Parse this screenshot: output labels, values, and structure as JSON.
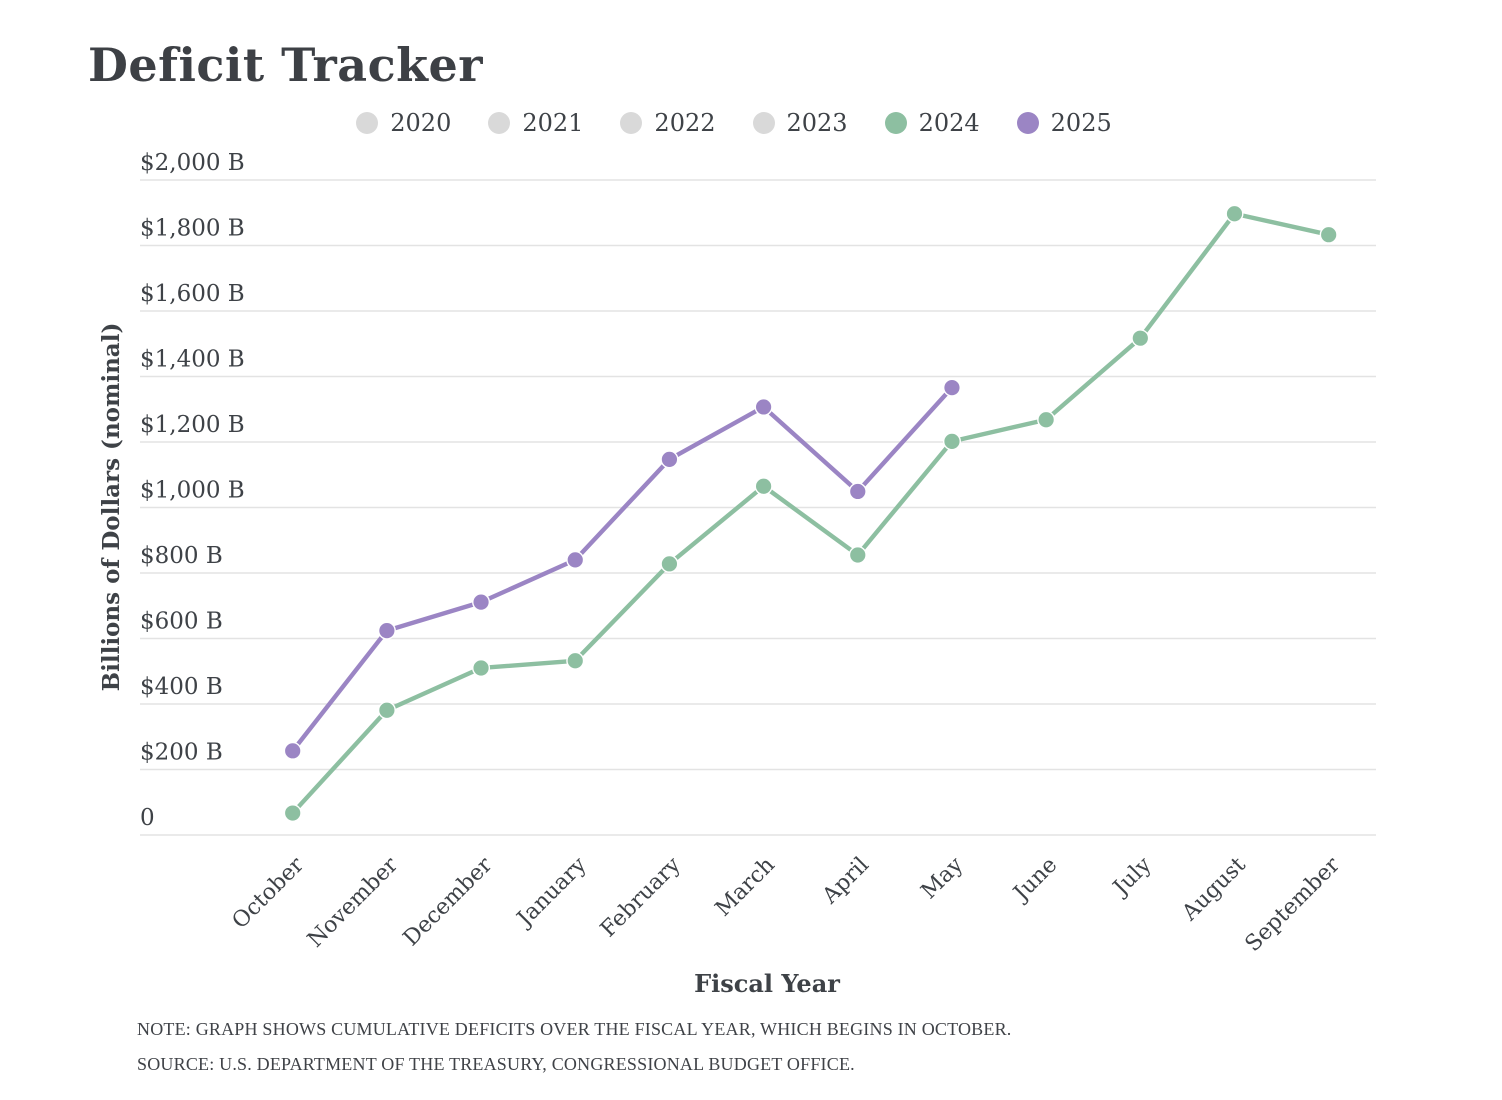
{
  "title": "Deficit Tracker",
  "colors": {
    "grid": "#e3e3e3",
    "text": "#3e4247",
    "inactive": "#d9d9d9",
    "green_2024": "#8dbfa1",
    "purple_2025": "#9b85c4"
  },
  "legend": {
    "items": [
      {
        "label": "2020",
        "color": "#d9d9d9",
        "active": false
      },
      {
        "label": "2021",
        "color": "#d9d9d9",
        "active": false
      },
      {
        "label": "2022",
        "color": "#d9d9d9",
        "active": false
      },
      {
        "label": "2023",
        "color": "#d9d9d9",
        "active": false
      },
      {
        "label": "2024",
        "color": "#8dbfa1",
        "active": true
      },
      {
        "label": "2025",
        "color": "#9b85c4",
        "active": true
      }
    ]
  },
  "chart_data": {
    "type": "line",
    "title": "Deficit Tracker",
    "xlabel": "Fiscal Year",
    "ylabel": "Billions of Dollars (nominal)",
    "categories": [
      "October",
      "November",
      "December",
      "January",
      "February",
      "March",
      "April",
      "May",
      "June",
      "July",
      "August",
      "September"
    ],
    "y_ticks": [
      "$2,000 B",
      "$1,800 B",
      "$1,600 B",
      "$1,400 B",
      "$1,200 B",
      "$1,000 B",
      "$800 B",
      "$600 B",
      "$400 B",
      "$200 B",
      "0"
    ],
    "ylim": [
      0,
      2000
    ],
    "grid": true,
    "legend_position": "top",
    "series": [
      {
        "name": "2024",
        "color": "#8dbfa1",
        "values": [
          67,
          381,
          510,
          532,
          828,
          1065,
          855,
          1202,
          1268,
          1517,
          1897,
          1833
        ]
      },
      {
        "name": "2025",
        "color": "#9b85c4",
        "values": [
          257,
          624,
          711,
          840,
          1147,
          1307,
          1049,
          1366
        ]
      }
    ],
    "inactive_series": [
      "2020",
      "2021",
      "2022",
      "2023"
    ]
  },
  "notes": {
    "note": "NOTE: GRAPH SHOWS CUMULATIVE DEFICITS OVER THE FISCAL YEAR, WHICH BEGINS IN OCTOBER.",
    "source": "SOURCE: U.S. DEPARTMENT OF THE TREASURY, CONGRESSIONAL BUDGET OFFICE."
  }
}
